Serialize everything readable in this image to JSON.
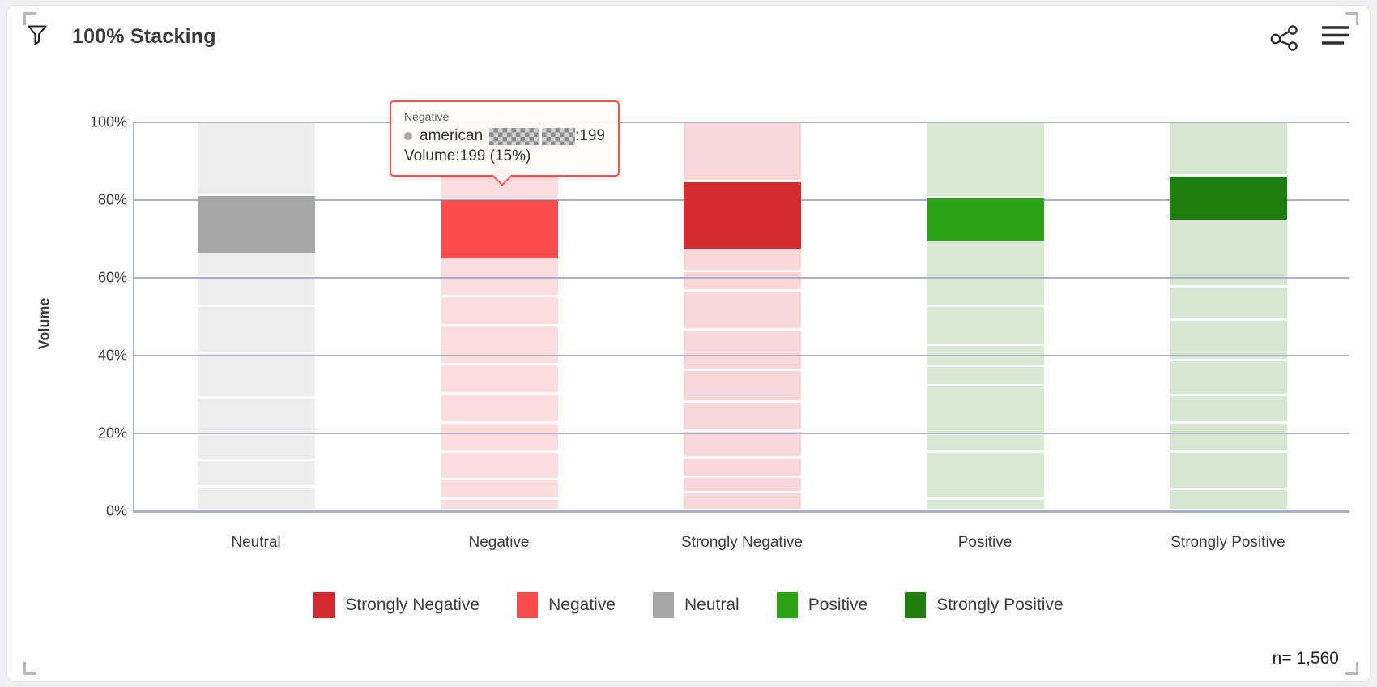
{
  "header": {
    "title": "100% Stacking"
  },
  "tooltip": {
    "header": "Negative",
    "series_prefix": "american",
    "series_value_suffix": ":199",
    "volume_line": "Volume:199 (15%)",
    "border_color": "#f4514f",
    "redacted": true
  },
  "chart_data": {
    "type": "bar",
    "stacking": "percent",
    "title": "100% Stacking",
    "xlabel": "",
    "ylabel": "Volume",
    "ylim": [
      0,
      100
    ],
    "grid": "horizontal",
    "y_ticks": [
      {
        "label": "100%",
        "value": 100
      },
      {
        "label": "80%",
        "value": 80
      },
      {
        "label": "60%",
        "value": 60
      },
      {
        "label": "40%",
        "value": 40
      },
      {
        "label": "20%",
        "value": 20
      },
      {
        "label": "0%",
        "value": 0
      }
    ],
    "categories": [
      "Neutral",
      "Negative",
      "Strongly Negative",
      "Positive",
      "Strongly Positive"
    ],
    "legend": {
      "position": "bottom",
      "entries": [
        {
          "label": "Strongly Negative",
          "color": "#d22b30"
        },
        {
          "label": "Negative",
          "color": "#fb4b4b"
        },
        {
          "label": "Neutral",
          "color": "#a7a7a7"
        },
        {
          "label": "Positive",
          "color": "#2fa318"
        },
        {
          "label": "Strongly Positive",
          "color": "#1f7d0f"
        }
      ]
    },
    "colors": {
      "neutral": {
        "solid": "#a7a7a7",
        "fade": "#ededed"
      },
      "negative": {
        "solid": "#fb4b4b",
        "fade": "#fddddd"
      },
      "strongly_negative": {
        "solid": "#d22b30",
        "fade": "#f7d7d8"
      },
      "positive": {
        "solid": "#2fa318",
        "fade": "#d9e8d2"
      },
      "strongly_positive": {
        "solid": "#1f7d0f",
        "fade": "#d7e6d0"
      }
    },
    "highlighted_series": {
      "name": "american (redacted)",
      "volume": 199,
      "percent_of_hovered_bar": "15%",
      "hovered_category": "Negative"
    },
    "bars": [
      {
        "category": "Neutral",
        "color_key": "neutral",
        "highlight_index": 1,
        "highlight_span_pct": [
          66.5,
          81
        ],
        "segments": [
          19,
          14.5,
          6.5,
          7.5,
          12,
          11.5,
          9.5,
          6.5,
          7,
          6
        ]
      },
      {
        "category": "Negative",
        "color_key": "negative",
        "highlight_index": 1,
        "highlight_span_pct": [
          65,
          80
        ],
        "segments": [
          20,
          15,
          10,
          7.5,
          10,
          7.5,
          7.5,
          7.5,
          7,
          5,
          3
        ]
      },
      {
        "category": "Strongly Negative",
        "color_key": "strongly_negative",
        "highlight_index": 1,
        "highlight_span_pct": [
          67.5,
          84.5
        ],
        "segments": [
          15.5,
          17,
          6,
          5,
          10,
          10.5,
          8,
          7.5,
          7,
          5,
          4,
          4.5
        ]
      },
      {
        "category": "Positive",
        "color_key": "positive",
        "highlight_index": 1,
        "highlight_span_pct": [
          69.5,
          80.5
        ],
        "segments": [
          19.5,
          11,
          17,
          10,
          5.5,
          5,
          12.5,
          4.5,
          12,
          3
        ]
      },
      {
        "category": "Strongly Positive",
        "color_key": "strongly_positive",
        "highlight_index": 1,
        "highlight_span_pct": [
          75,
          86
        ],
        "segments": [
          14,
          11,
          17.5,
          8.5,
          10.5,
          9,
          7,
          7.5,
          9.5,
          5.5
        ]
      }
    ],
    "sample_size_label": "n= 1,560"
  }
}
